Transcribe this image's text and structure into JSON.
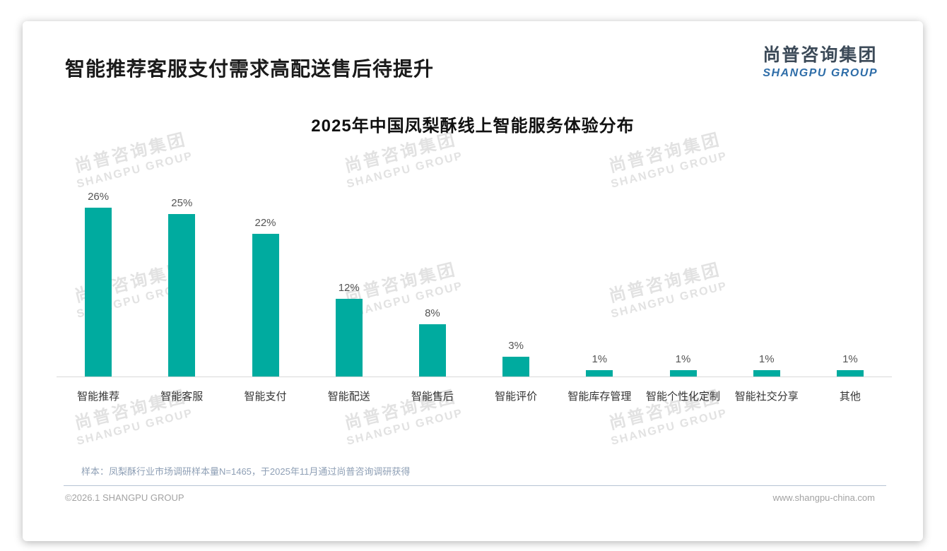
{
  "page_title": "智能推荐客服支付需求高配送售后待提升",
  "logo": {
    "cn": "尚普咨询集团",
    "en": "SHANGPU GROUP",
    "cn_color": "#3c4a58",
    "en_color": "#2e6da8"
  },
  "watermark": {
    "line1": "尚普咨询集团",
    "line2": "SHANGPU GROUP"
  },
  "chart_data": {
    "type": "bar",
    "title": "2025年中国凤梨酥线上智能服务体验分布",
    "categories": [
      "智能推荐",
      "智能客服",
      "智能支付",
      "智能配送",
      "智能售后",
      "智能评价",
      "智能库存管理",
      "智能个性化定制",
      "智能社交分享",
      "其他"
    ],
    "values": [
      26,
      25,
      22,
      12,
      8,
      3,
      1,
      1,
      1,
      1
    ],
    "value_labels": [
      "26%",
      "25%",
      "22%",
      "12%",
      "8%",
      "3%",
      "1%",
      "1%",
      "1%",
      "1%"
    ],
    "unit": "%",
    "ylim": [
      0,
      28
    ],
    "bar_color": "#00ab9f",
    "grid": false,
    "legend": null,
    "xlabel": "",
    "ylabel": ""
  },
  "footnote": "样本：凤梨酥行业市场调研样本量N=1465，于2025年11月通过尚普咨询调研获得",
  "footer": {
    "left": "©2026.1 SHANGPU GROUP",
    "right": "www.shangpu-china.com"
  }
}
